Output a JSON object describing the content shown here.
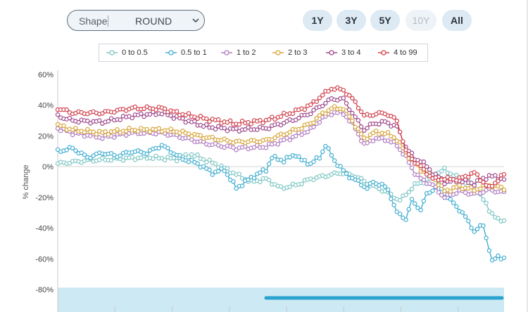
{
  "controls": {
    "shape_label": "Shape",
    "shape_value": "ROUND",
    "ranges": [
      {
        "label": "1Y",
        "enabled": true
      },
      {
        "label": "3Y",
        "enabled": true
      },
      {
        "label": "5Y",
        "enabled": true
      },
      {
        "label": "10Y",
        "enabled": false
      },
      {
        "label": "All",
        "enabled": true
      }
    ]
  },
  "colors": {
    "brand": "#2aa3cf",
    "navigator_fill": "#cde9f3",
    "navigator_handle": "#2aa3cf"
  },
  "chart_data": {
    "type": "line",
    "ylabel": "% change",
    "y_tick_labels": [
      "60%",
      "40%",
      "20%",
      "0%",
      "-20%",
      "-40%",
      "-60%",
      "-80%"
    ],
    "ylim": [
      -80,
      60
    ],
    "grid": "horizontal at 0%",
    "legend_position": "top-center",
    "x_points": 150,
    "series": [
      {
        "name": "0 to 0.5",
        "color": "#7fc7c4",
        "anchors": [
          [
            0,
            2
          ],
          [
            10,
            4
          ],
          [
            20,
            5
          ],
          [
            30,
            6
          ],
          [
            40,
            5
          ],
          [
            45,
            8
          ],
          [
            50,
            4
          ],
          [
            55,
            0
          ],
          [
            60,
            -5
          ],
          [
            65,
            -10
          ],
          [
            70,
            -8
          ],
          [
            75,
            -14
          ],
          [
            80,
            -12
          ],
          [
            85,
            -8
          ],
          [
            90,
            -6
          ],
          [
            95,
            -4
          ],
          [
            100,
            -6
          ],
          [
            105,
            -12
          ],
          [
            110,
            -16
          ],
          [
            115,
            -22
          ],
          [
            120,
            -12
          ],
          [
            125,
            -8
          ],
          [
            128,
            -4
          ],
          [
            130,
            -2
          ],
          [
            135,
            -8
          ],
          [
            140,
            -12
          ],
          [
            145,
            -28
          ],
          [
            148,
            -35
          ]
        ]
      },
      {
        "name": "0.5 to 1",
        "color": "#42aed1",
        "anchors": [
          [
            0,
            10
          ],
          [
            5,
            12
          ],
          [
            10,
            6
          ],
          [
            15,
            9
          ],
          [
            20,
            7
          ],
          [
            25,
            10
          ],
          [
            30,
            9
          ],
          [
            35,
            14
          ],
          [
            38,
            10
          ],
          [
            42,
            5
          ],
          [
            47,
            2
          ],
          [
            52,
            -4
          ],
          [
            56,
            -2
          ],
          [
            60,
            -14
          ],
          [
            63,
            -10
          ],
          [
            66,
            -6
          ],
          [
            70,
            -2
          ],
          [
            72,
            6
          ],
          [
            76,
            4
          ],
          [
            80,
            8
          ],
          [
            82,
            4
          ],
          [
            85,
            2
          ],
          [
            88,
            6
          ],
          [
            90,
            14
          ],
          [
            93,
            4
          ],
          [
            97,
            -5
          ],
          [
            101,
            -10
          ],
          [
            104,
            -14
          ],
          [
            106,
            -10
          ],
          [
            109,
            -12
          ],
          [
            111,
            -15
          ],
          [
            114,
            -30
          ],
          [
            117,
            -34
          ],
          [
            119,
            -22
          ],
          [
            122,
            -28
          ],
          [
            124,
            -18
          ],
          [
            128,
            -12
          ],
          [
            132,
            -22
          ],
          [
            136,
            -30
          ],
          [
            140,
            -42
          ],
          [
            143,
            -38
          ],
          [
            146,
            -62
          ],
          [
            148,
            -58
          ],
          [
            150,
            -60
          ]
        ]
      },
      {
        "name": "1 to 2",
        "color": "#b07cc1",
        "anchors": [
          [
            0,
            25
          ],
          [
            5,
            22
          ],
          [
            15,
            19
          ],
          [
            25,
            22
          ],
          [
            35,
            22
          ],
          [
            40,
            20
          ],
          [
            50,
            15
          ],
          [
            60,
            12
          ],
          [
            70,
            13
          ],
          [
            80,
            20
          ],
          [
            85,
            24
          ],
          [
            88,
            30
          ],
          [
            92,
            35
          ],
          [
            96,
            35
          ],
          [
            100,
            25
          ],
          [
            103,
            14
          ],
          [
            106,
            18
          ],
          [
            110,
            18
          ],
          [
            114,
            14
          ],
          [
            117,
            6
          ],
          [
            120,
            -4
          ],
          [
            122,
            -8
          ],
          [
            126,
            -12
          ],
          [
            130,
            -20
          ],
          [
            135,
            -16
          ],
          [
            140,
            -18
          ],
          [
            145,
            -15
          ],
          [
            150,
            -17
          ]
        ]
      },
      {
        "name": "2 to 3",
        "color": "#d8a53a",
        "anchors": [
          [
            0,
            27
          ],
          [
            5,
            24
          ],
          [
            15,
            22
          ],
          [
            25,
            24
          ],
          [
            35,
            24
          ],
          [
            40,
            23
          ],
          [
            50,
            19
          ],
          [
            60,
            16
          ],
          [
            70,
            17
          ],
          [
            80,
            24
          ],
          [
            85,
            28
          ],
          [
            88,
            33
          ],
          [
            92,
            38
          ],
          [
            96,
            38
          ],
          [
            100,
            27
          ],
          [
            103,
            18
          ],
          [
            106,
            22
          ],
          [
            110,
            22
          ],
          [
            114,
            18
          ],
          [
            117,
            9
          ],
          [
            120,
            2
          ],
          [
            122,
            -2
          ],
          [
            126,
            -6
          ],
          [
            130,
            -16
          ],
          [
            135,
            -13
          ],
          [
            140,
            -15
          ],
          [
            145,
            -12
          ],
          [
            150,
            -14
          ]
        ]
      },
      {
        "name": "3 to 4",
        "color": "#9e4a8c",
        "anchors": [
          [
            0,
            33
          ],
          [
            5,
            30
          ],
          [
            15,
            29
          ],
          [
            25,
            33
          ],
          [
            35,
            35
          ],
          [
            40,
            32
          ],
          [
            50,
            26
          ],
          [
            60,
            24
          ],
          [
            70,
            25
          ],
          [
            80,
            31
          ],
          [
            85,
            35
          ],
          [
            88,
            39
          ],
          [
            92,
            44
          ],
          [
            96,
            44
          ],
          [
            100,
            32
          ],
          [
            103,
            24
          ],
          [
            106,
            28
          ],
          [
            110,
            29
          ],
          [
            114,
            26
          ],
          [
            117,
            13
          ],
          [
            120,
            5
          ],
          [
            122,
            4
          ],
          [
            126,
            -4
          ],
          [
            130,
            -10
          ],
          [
            135,
            -9
          ],
          [
            140,
            -11
          ],
          [
            145,
            -6
          ],
          [
            150,
            -8
          ]
        ]
      },
      {
        "name": "4 to 99",
        "color": "#d1414c",
        "anchors": [
          [
            0,
            38
          ],
          [
            5,
            35
          ],
          [
            15,
            35
          ],
          [
            25,
            38
          ],
          [
            35,
            38
          ],
          [
            40,
            35
          ],
          [
            50,
            31
          ],
          [
            60,
            28
          ],
          [
            70,
            30
          ],
          [
            80,
            36
          ],
          [
            85,
            40
          ],
          [
            88,
            45
          ],
          [
            92,
            51
          ],
          [
            96,
            50
          ],
          [
            100,
            42
          ],
          [
            103,
            33
          ],
          [
            106,
            34
          ],
          [
            110,
            35
          ],
          [
            114,
            30
          ],
          [
            117,
            10
          ],
          [
            120,
            3
          ],
          [
            122,
            0
          ],
          [
            126,
            -8
          ],
          [
            130,
            -8
          ],
          [
            135,
            -8
          ],
          [
            140,
            -4
          ],
          [
            145,
            -14
          ],
          [
            150,
            -5
          ]
        ]
      }
    ]
  }
}
